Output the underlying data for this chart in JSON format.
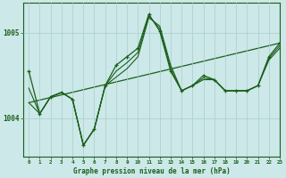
{
  "title": "Graphe pression niveau de la mer (hPa)",
  "background_color": "#cce8e8",
  "grid_color": "#aacece",
  "line_color": "#1a5e1a",
  "xlim": [
    -0.5,
    23
  ],
  "ylim": [
    1003.55,
    1005.35
  ],
  "yticks": [
    1004,
    1005
  ],
  "xticks": [
    0,
    1,
    2,
    3,
    4,
    5,
    6,
    7,
    8,
    9,
    10,
    11,
    12,
    13,
    14,
    15,
    16,
    17,
    18,
    19,
    20,
    21,
    22,
    23
  ],
  "line_main_x": [
    0,
    1,
    2,
    3,
    4,
    5,
    6,
    7,
    8,
    9,
    10,
    11,
    12,
    13,
    14,
    15,
    16,
    17,
    18,
    19,
    20,
    21,
    22,
    23
  ],
  "line_main_y": [
    1004.55,
    1004.05,
    1004.25,
    1004.3,
    1004.22,
    1003.68,
    1003.87,
    1004.38,
    1004.62,
    1004.72,
    1004.82,
    1005.22,
    1005.02,
    1004.55,
    1004.32,
    1004.38,
    1004.5,
    1004.45,
    1004.32,
    1004.32,
    1004.32,
    1004.38,
    1004.72,
    1004.88
  ],
  "line2_x": [
    0,
    1,
    2,
    3,
    4,
    5,
    6,
    7,
    8,
    9,
    10,
    11,
    12,
    13,
    14,
    15,
    16,
    17,
    18,
    19,
    20,
    21,
    22,
    23
  ],
  "line2_y": [
    1004.18,
    1004.05,
    1004.25,
    1004.3,
    1004.22,
    1003.68,
    1003.87,
    1004.38,
    1004.48,
    1004.58,
    1004.72,
    1005.18,
    1005.08,
    1004.62,
    1004.32,
    1004.38,
    1004.45,
    1004.45,
    1004.32,
    1004.32,
    1004.32,
    1004.38,
    1004.68,
    1004.82
  ],
  "line3_x": [
    0,
    1,
    2,
    3,
    4,
    5,
    6,
    7,
    8,
    9,
    10,
    11,
    12,
    13,
    14,
    15,
    16,
    17,
    18,
    19,
    20,
    21,
    22,
    23
  ],
  "line3_y": [
    1004.35,
    1004.05,
    1004.25,
    1004.3,
    1004.22,
    1003.68,
    1003.87,
    1004.38,
    1004.55,
    1004.65,
    1004.77,
    1005.2,
    1005.05,
    1004.58,
    1004.32,
    1004.38,
    1004.47,
    1004.45,
    1004.32,
    1004.32,
    1004.32,
    1004.38,
    1004.7,
    1004.85
  ],
  "trend_x": [
    0,
    23
  ],
  "trend_y": [
    1004.18,
    1004.88
  ]
}
